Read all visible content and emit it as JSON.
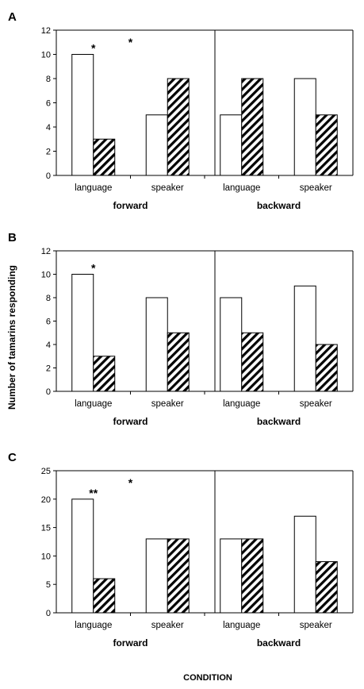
{
  "figure": {
    "ylabel": "Number of tamarins responding",
    "xlabel": "CONDITION"
  },
  "chart_data": [
    {
      "type": "bar",
      "panel": "A",
      "categories": [
        "language",
        "speaker",
        "language",
        "speaker"
      ],
      "groups": [
        "forward",
        "backward"
      ],
      "series": [
        {
          "pattern": "open",
          "values": [
            10,
            5,
            5,
            8
          ]
        },
        {
          "pattern": "hatched",
          "values": [
            3,
            8,
            8,
            5
          ]
        }
      ],
      "ylim": [
        0,
        12
      ],
      "yticks": [
        0,
        2,
        4,
        6,
        8,
        10,
        12
      ],
      "annotations": [
        {
          "text": "*",
          "category": 0,
          "placement": "bar-top"
        },
        {
          "text": "*",
          "category": 0,
          "placement": "between-groups-high"
        }
      ]
    },
    {
      "type": "bar",
      "panel": "B",
      "categories": [
        "language",
        "speaker",
        "language",
        "speaker"
      ],
      "groups": [
        "forward",
        "backward"
      ],
      "series": [
        {
          "pattern": "open",
          "values": [
            10,
            8,
            8,
            9
          ]
        },
        {
          "pattern": "hatched",
          "values": [
            3,
            5,
            5,
            4
          ]
        }
      ],
      "ylim": [
        0,
        12
      ],
      "yticks": [
        0,
        2,
        4,
        6,
        8,
        10,
        12
      ],
      "annotations": [
        {
          "text": "*",
          "category": 0,
          "placement": "bar-top"
        }
      ]
    },
    {
      "type": "bar",
      "panel": "C",
      "categories": [
        "language",
        "speaker",
        "language",
        "speaker"
      ],
      "groups": [
        "forward",
        "backward"
      ],
      "series": [
        {
          "pattern": "open",
          "values": [
            20,
            13,
            13,
            17
          ]
        },
        {
          "pattern": "hatched",
          "values": [
            6,
            13,
            13,
            9
          ]
        }
      ],
      "ylim": [
        0,
        25
      ],
      "yticks": [
        0,
        5,
        10,
        15,
        20,
        25
      ],
      "annotations": [
        {
          "text": "**",
          "category": 0,
          "placement": "bar-top"
        },
        {
          "text": "*",
          "category": 0,
          "placement": "between-groups-high"
        }
      ]
    }
  ]
}
